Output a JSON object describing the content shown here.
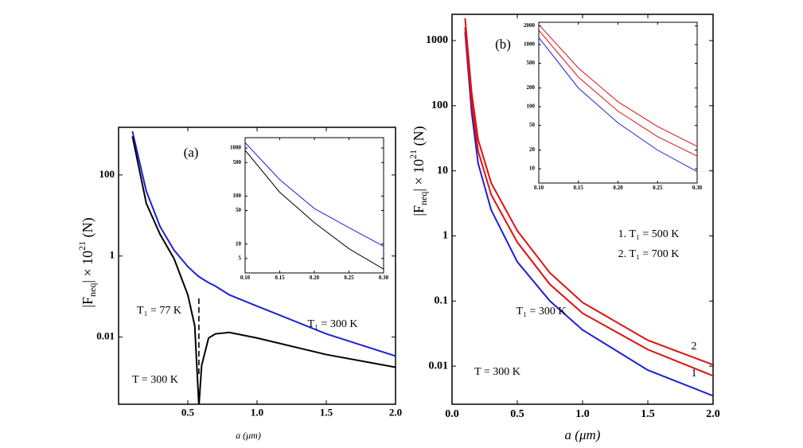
{
  "chart_data": [
    {
      "type": "line",
      "log_y": true,
      "xlabel": "a (μm)",
      "ylabel": [
        "|F",
        "neq",
        "| × 10",
        "21",
        " (N)"
      ],
      "annotations": [
        "(a)",
        "T = 300 K"
      ],
      "xlim": [
        0,
        2
      ],
      "ylim": [
        0.00022,
        1500
      ],
      "xticks": [
        0.5,
        {
          "value": 1,
          "label": "1.0"
        },
        1.5,
        {
          "value": 2,
          "label": "2.0"
        }
      ],
      "yticks": [
        0.01,
        1,
        100
      ],
      "x": [
        0.1,
        0.2,
        0.3,
        0.4,
        0.5,
        0.55,
        0.58,
        0.6,
        0.65,
        0.7,
        0.8,
        1.0,
        1.5,
        2.0
      ],
      "series": [
        {
          "name": "T₁ = 300 K",
          "color": "#1f1fd6",
          "values": [
            1200,
            40,
            5.3,
            1.4,
            0.55,
            0.38,
            0.31,
            0.28,
            0.22,
            0.18,
            0.11,
            0.058,
            0.012,
            0.0034
          ]
        },
        {
          "name": "T₁ = 77 K",
          "color": "#000000",
          "values": [
            900,
            20,
            3.4,
            0.87,
            0.11,
            0.019,
            0.0002,
            0.002,
            0.0095,
            0.012,
            0.013,
            0.0095,
            0.0037,
            0.0018
          ]
        }
      ]
    },
    {
      "type": "line",
      "log_y": true,
      "xlim": [
        0.1,
        0.3
      ],
      "ylim": [
        2.5,
        1650
      ],
      "xticks": [
        {
          "value": 0.1,
          "label": "0.10"
        },
        0.15,
        {
          "value": 0.2,
          "label": "0.20"
        },
        0.25,
        {
          "value": 0.3,
          "label": "0.30"
        }
      ],
      "yticks": [
        5,
        10,
        50,
        100,
        500,
        1000
      ],
      "x": [
        0.1,
        0.15,
        0.2,
        0.25,
        0.3
      ],
      "series": [
        {
          "color": "#1f1fd6",
          "values": [
            1300,
            220,
            55,
            22,
            9
          ]
        },
        {
          "color": "#000000",
          "values": [
            900,
            120,
            28,
            8,
            3
          ]
        }
      ]
    },
    {
      "type": "line",
      "log_y": true,
      "xlabel": "a (μm)",
      "ylabel": [
        "|F",
        "neq",
        "| × 10",
        "21",
        " (N)"
      ],
      "annotations": [
        "(b)",
        "1. T₁ = 500 K",
        "2. T₁ = 700 K",
        "T = 300 K"
      ],
      "xlim": [
        0,
        2
      ],
      "ylim": [
        0.0026,
        2530
      ],
      "xticks": [
        {
          "value": 0,
          "label": "0.0"
        },
        0.5,
        {
          "value": 1,
          "label": "1.0"
        },
        1.5,
        {
          "value": 2,
          "label": "2.0"
        }
      ],
      "yticks": [
        0.01,
        0.1,
        1,
        10,
        100,
        1000
      ],
      "x": [
        0.1,
        0.15,
        0.2,
        0.3,
        0.5,
        0.75,
        1.0,
        1.5,
        2.0
      ],
      "series": [
        {
          "name": "T₁ = 300 K",
          "color": "#1f1fd6",
          "values": [
            1350,
            80,
            13,
            2.5,
            0.4,
            0.1,
            0.036,
            0.0087,
            0.0035
          ]
        },
        {
          "name": "1",
          "color": "#e01010",
          "values": [
            1600,
            110,
            20,
            4.3,
            0.8,
            0.18,
            0.065,
            0.018,
            0.0071
          ]
        },
        {
          "name": "2",
          "color": "#e01010",
          "values": [
            2200,
            160,
            30,
            6.5,
            1.2,
            0.27,
            0.095,
            0.025,
            0.0105
          ]
        }
      ]
    },
    {
      "type": "line",
      "log_y": true,
      "xlim": [
        0.1,
        0.3
      ],
      "ylim": [
        5.9,
        2290
      ],
      "xticks": [
        {
          "value": 0.1,
          "label": "0.10"
        },
        0.15,
        {
          "value": 0.2,
          "label": "0.20"
        },
        0.25,
        {
          "value": 0.3,
          "label": "0.30"
        }
      ],
      "yticks": [
        10,
        20,
        50,
        100,
        200,
        500,
        1000,
        2000
      ],
      "x": [
        0.1,
        0.15,
        0.2,
        0.25,
        0.3
      ],
      "series": [
        {
          "color": "#1f1fd6",
          "values": [
            1300,
            200,
            55,
            20,
            9
          ]
        },
        {
          "color": "#e01010",
          "values": [
            1700,
            300,
            85,
            33,
            16
          ]
        },
        {
          "color": "#e01010",
          "values": [
            2100,
            420,
            120,
            48,
            23
          ]
        }
      ]
    }
  ]
}
